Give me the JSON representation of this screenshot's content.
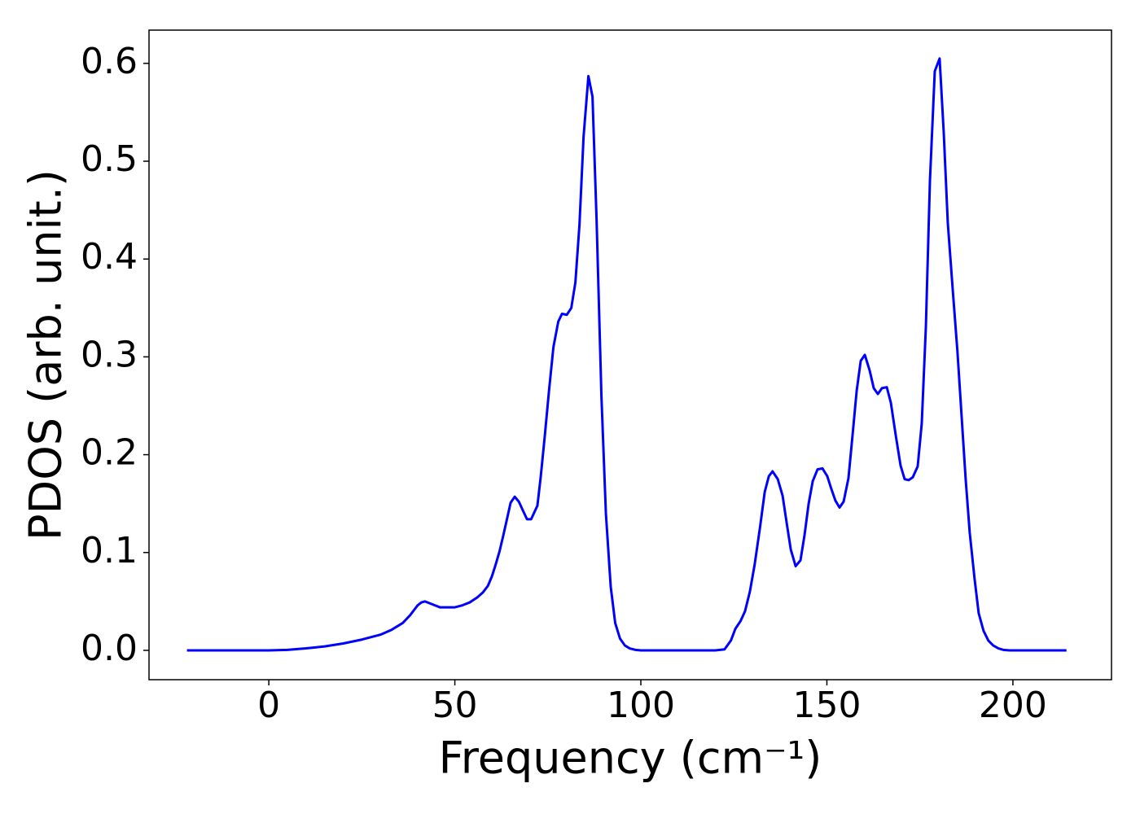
{
  "chart_data": {
    "type": "line",
    "xlabel": "Frequency (cm⁻¹)",
    "ylabel": "PDOS (arb. unit.)",
    "xlim": [
      -32.2,
      226.5
    ],
    "ylim": [
      -0.03,
      0.634
    ],
    "xticks": [
      0,
      50,
      100,
      150,
      200
    ],
    "yticks": [
      {
        "value": 0,
        "label": "0.0"
      },
      0.1,
      0.2,
      0.3,
      0.4,
      0.5,
      0.6
    ],
    "grid": false,
    "series": [
      {
        "color": "#0000ff",
        "x": [
          -22,
          -10,
          0,
          5,
          10,
          15,
          20,
          25,
          30,
          33,
          36,
          38,
          40,
          41,
          42,
          44,
          46,
          48,
          50,
          52,
          54,
          56,
          57.5,
          58.9,
          60,
          61,
          62,
          63,
          64,
          65,
          66.1,
          67.2,
          68.3,
          69.4,
          70.5,
          72.2,
          73.1,
          74.2,
          75.3,
          76.5,
          77.8,
          78.8,
          80.1,
          81.3,
          82.4,
          83.5,
          84.6,
          85.9,
          87.0,
          88.1,
          89.4,
          90.6,
          91.9,
          93.1,
          94.4,
          95.7,
          97,
          98.5,
          100,
          110,
          120,
          122.5,
          124.2,
          125.4,
          126.8,
          128.0,
          129.3,
          130.6,
          132.0,
          133.3,
          134.4,
          135.4,
          136.8,
          138.1,
          139.2,
          140.3,
          141.6,
          142.9,
          144.0,
          145.1,
          146.2,
          147.5,
          148.8,
          150.1,
          151.2,
          152.3,
          153.4,
          154.5,
          155.8,
          156.9,
          158.0,
          159.1,
          160.2,
          161.5,
          162.6,
          163.7,
          164.8,
          166.1,
          167.2,
          168.5,
          169.8,
          170.9,
          172.0,
          173.1,
          174.4,
          175.5,
          176.6,
          177.7,
          179.0,
          180.3,
          181.4,
          182.5,
          183.8,
          185.1,
          186.2,
          187.3,
          188.4,
          189.7,
          190.8,
          192.1,
          193.4,
          194.7,
          196.1,
          197.4,
          199.1,
          205,
          214.4
        ],
        "values": [
          0,
          0,
          0,
          0.0005,
          0.002,
          0.004,
          0.007,
          0.011,
          0.016,
          0.021,
          0.028,
          0.036,
          0.046,
          0.049,
          0.05,
          0.047,
          0.044,
          0.044,
          0.044,
          0.046,
          0.049,
          0.054,
          0.059,
          0.066,
          0.076,
          0.088,
          0.101,
          0.117,
          0.134,
          0.151,
          0.157,
          0.152,
          0.143,
          0.134,
          0.134,
          0.148,
          0.178,
          0.22,
          0.265,
          0.31,
          0.336,
          0.344,
          0.343,
          0.35,
          0.376,
          0.435,
          0.525,
          0.587,
          0.566,
          0.44,
          0.26,
          0.14,
          0.065,
          0.028,
          0.012,
          0.005,
          0.002,
          0.0005,
          0,
          0,
          0,
          0.001,
          0.01,
          0.022,
          0.03,
          0.04,
          0.06,
          0.088,
          0.125,
          0.162,
          0.178,
          0.183,
          0.175,
          0.158,
          0.13,
          0.103,
          0.086,
          0.092,
          0.118,
          0.15,
          0.173,
          0.185,
          0.186,
          0.178,
          0.165,
          0.153,
          0.146,
          0.152,
          0.176,
          0.22,
          0.265,
          0.296,
          0.302,
          0.286,
          0.268,
          0.262,
          0.268,
          0.269,
          0.253,
          0.22,
          0.189,
          0.175,
          0.174,
          0.177,
          0.188,
          0.232,
          0.33,
          0.48,
          0.592,
          0.605,
          0.53,
          0.437,
          0.37,
          0.305,
          0.24,
          0.175,
          0.12,
          0.073,
          0.038,
          0.02,
          0.01,
          0.005,
          0.002,
          0.0005,
          0,
          0,
          0
        ]
      }
    ]
  }
}
